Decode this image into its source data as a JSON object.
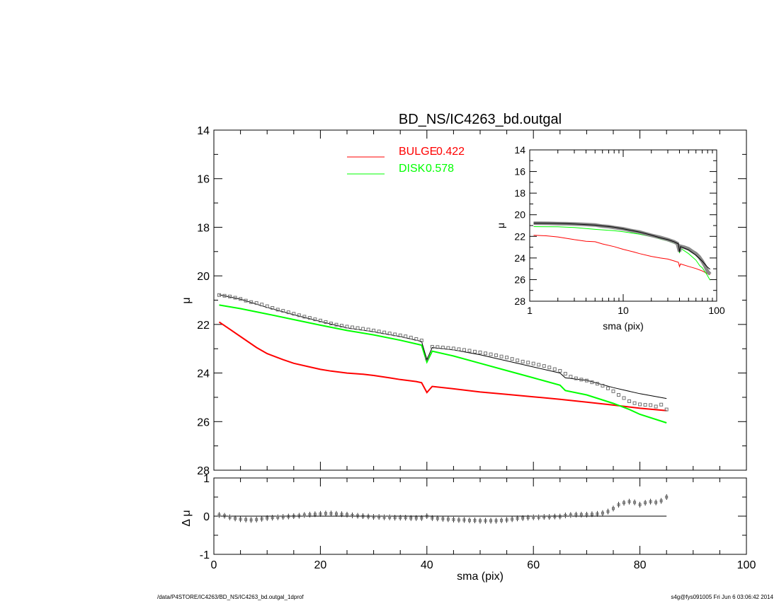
{
  "chart_data": [
    {
      "panel": "main",
      "type": "line",
      "title": "BD_NS/IC4263_bd.outgal",
      "xlabel": "",
      "ylabel": "μ",
      "xlim": [
        0,
        100
      ],
      "ylim": [
        28,
        14
      ],
      "y_inverted": true,
      "yticks": [
        "14",
        "16",
        "18",
        "20",
        "22",
        "24",
        "26",
        "28"
      ],
      "colors": {
        "data": "#000000",
        "total": "#000000",
        "bulge": "#ff0000",
        "disk": "#00ff00",
        "markers": "#707070"
      },
      "legend": {
        "placement": "top-center",
        "entries": [
          {
            "name": "BULGE",
            "value": "0.422",
            "color": "#ff0000"
          },
          {
            "name": "DISK",
            "value": "0.578",
            "color": "#00ff00"
          }
        ]
      },
      "series": [
        {
          "role": "data",
          "marker": "square",
          "x": [
            1,
            2,
            3,
            4,
            5,
            6,
            7,
            8,
            9,
            10,
            11,
            12,
            13,
            14,
            15,
            16,
            17,
            18,
            19,
            20,
            21,
            22,
            23,
            24,
            25,
            26,
            27,
            28,
            29,
            30,
            31,
            32,
            33,
            34,
            35,
            36,
            37,
            38,
            39,
            40,
            41,
            42,
            43,
            44,
            45,
            46,
            47,
            48,
            49,
            50,
            51,
            52,
            53,
            54,
            55,
            56,
            57,
            58,
            59,
            60,
            61,
            62,
            63,
            64,
            65,
            66,
            67,
            68,
            69,
            70,
            71,
            72,
            73,
            74,
            75,
            76,
            77,
            78,
            79,
            80,
            81,
            82,
            83,
            84,
            85
          ],
          "y": [
            20.79,
            20.82,
            20.85,
            20.9,
            20.95,
            21.02,
            21.08,
            21.12,
            21.18,
            21.25,
            21.32,
            21.39,
            21.44,
            21.5,
            21.56,
            21.62,
            21.68,
            21.73,
            21.79,
            21.84,
            21.9,
            21.96,
            22.01,
            22.05,
            22.09,
            22.12,
            22.15,
            22.18,
            22.21,
            22.25,
            22.29,
            22.33,
            22.37,
            22.41,
            22.45,
            22.49,
            22.54,
            22.6,
            22.66,
            23.4,
            22.92,
            22.93,
            22.95,
            22.97,
            22.99,
            23.02,
            23.05,
            23.08,
            23.12,
            23.15,
            23.19,
            23.23,
            23.27,
            23.32,
            23.36,
            23.42,
            23.48,
            23.53,
            23.57,
            23.61,
            23.66,
            23.71,
            23.77,
            23.84,
            23.91,
            24.03,
            24.15,
            24.22,
            24.27,
            24.31,
            24.38,
            24.44,
            24.52,
            24.63,
            24.75,
            24.9,
            25.03,
            25.16,
            25.24,
            25.29,
            25.31,
            25.32,
            25.38,
            25.3,
            25.5
          ]
        },
        {
          "role": "total",
          "x": [
            1,
            5,
            10,
            15,
            20,
            25,
            30,
            35,
            39,
            40,
            41,
            45,
            50,
            55,
            60,
            65,
            66,
            70,
            75,
            80,
            85
          ],
          "y": [
            20.78,
            20.96,
            21.3,
            21.6,
            21.88,
            22.14,
            22.3,
            22.5,
            22.7,
            23.45,
            22.95,
            23.05,
            23.25,
            23.5,
            23.75,
            24.0,
            24.2,
            24.3,
            24.6,
            24.85,
            25.05
          ]
        },
        {
          "role": "bulge",
          "name": "BULGE",
          "x": [
            1,
            3,
            5,
            8,
            10,
            13,
            15,
            18,
            20,
            22,
            25,
            28,
            30,
            33,
            35,
            38,
            39,
            40,
            41,
            45,
            50,
            55,
            60,
            65,
            70,
            75,
            80,
            85
          ],
          "y": [
            21.9,
            22.2,
            22.5,
            22.95,
            23.2,
            23.45,
            23.6,
            23.75,
            23.85,
            23.92,
            24.0,
            24.05,
            24.1,
            24.2,
            24.27,
            24.35,
            24.4,
            24.8,
            24.55,
            24.65,
            24.78,
            24.88,
            24.98,
            25.08,
            25.2,
            25.32,
            25.45,
            25.55
          ]
        },
        {
          "role": "disk",
          "name": "DISK",
          "x": [
            1,
            5,
            10,
            15,
            20,
            25,
            30,
            35,
            39,
            40,
            41,
            45,
            50,
            55,
            60,
            65,
            66,
            70,
            75,
            78,
            80,
            85
          ],
          "y": [
            21.2,
            21.35,
            21.57,
            21.8,
            22.03,
            22.25,
            22.43,
            22.65,
            22.85,
            23.55,
            23.1,
            23.3,
            23.6,
            23.9,
            24.2,
            24.5,
            24.72,
            24.9,
            25.25,
            25.5,
            25.7,
            26.05
          ]
        }
      ]
    },
    {
      "panel": "residual",
      "type": "scatter",
      "xlabel": "sma (pix)",
      "ylabel": "Δ μ",
      "xlim": [
        0,
        100
      ],
      "ylim": [
        -1,
        1
      ],
      "xticks": [
        "0",
        "20",
        "40",
        "60",
        "80",
        "100"
      ],
      "yticks": [
        "1",
        "0",
        "-1"
      ],
      "series": [
        {
          "role": "residual",
          "marker": "square",
          "x": [
            1,
            2,
            3,
            4,
            5,
            6,
            7,
            8,
            9,
            10,
            11,
            12,
            13,
            14,
            15,
            16,
            17,
            18,
            19,
            20,
            21,
            22,
            23,
            24,
            25,
            26,
            27,
            28,
            29,
            30,
            31,
            32,
            33,
            34,
            35,
            36,
            37,
            38,
            39,
            40,
            41,
            42,
            43,
            44,
            45,
            46,
            47,
            48,
            49,
            50,
            51,
            52,
            53,
            54,
            55,
            56,
            57,
            58,
            59,
            60,
            61,
            62,
            63,
            64,
            65,
            66,
            67,
            68,
            69,
            70,
            71,
            72,
            73,
            74,
            75,
            76,
            77,
            78,
            79,
            80,
            81,
            82,
            83,
            84,
            85
          ],
          "y": [
            0.03,
            0.01,
            -0.03,
            -0.06,
            -0.08,
            -0.09,
            -0.1,
            -0.09,
            -0.07,
            -0.05,
            -0.04,
            -0.03,
            -0.02,
            -0.01,
            0.0,
            0.01,
            0.03,
            0.04,
            0.05,
            0.06,
            0.07,
            0.07,
            0.06,
            0.05,
            0.04,
            0.02,
            0.01,
            0.0,
            -0.01,
            -0.02,
            -0.02,
            -0.03,
            -0.03,
            -0.04,
            -0.04,
            -0.04,
            -0.05,
            -0.05,
            -0.05,
            0.0,
            -0.05,
            -0.06,
            -0.07,
            -0.08,
            -0.09,
            -0.1,
            -0.1,
            -0.11,
            -0.11,
            -0.12,
            -0.12,
            -0.12,
            -0.12,
            -0.11,
            -0.1,
            -0.08,
            -0.06,
            -0.05,
            -0.04,
            -0.03,
            -0.03,
            -0.02,
            -0.02,
            -0.01,
            -0.01,
            0.02,
            0.03,
            0.04,
            0.04,
            0.04,
            0.05,
            0.06,
            0.08,
            0.12,
            0.2,
            0.3,
            0.35,
            0.38,
            0.36,
            0.3,
            0.35,
            0.38,
            0.36,
            0.4,
            0.5
          ]
        },
        {
          "role": "zero-line",
          "x": [
            1,
            85
          ],
          "y": [
            0,
            0
          ]
        }
      ]
    },
    {
      "panel": "inset",
      "type": "line",
      "xscale": "log",
      "xlabel": "sma (pix)",
      "ylabel": "μ",
      "xlim": [
        1,
        100
      ],
      "ylim": [
        28,
        14
      ],
      "y_inverted": true,
      "xticks": [
        "1",
        "10",
        "100"
      ],
      "yticks": [
        "14",
        "16",
        "18",
        "20",
        "22",
        "24",
        "26",
        "28"
      ],
      "series": [
        {
          "role": "data",
          "marker": "square",
          "x": [
            1.1,
            1.3,
            1.6,
            2,
            2.5,
            3,
            4,
            5,
            6,
            7,
            8,
            10,
            12,
            15,
            18,
            20,
            25,
            30,
            35,
            38,
            40,
            41,
            45,
            50,
            55,
            60,
            65,
            70,
            75,
            80,
            85
          ],
          "y": [
            20.79,
            20.79,
            20.8,
            20.82,
            20.83,
            20.85,
            20.9,
            20.95,
            21.05,
            21.1,
            21.18,
            21.3,
            21.45,
            21.6,
            21.8,
            21.9,
            22.1,
            22.3,
            22.5,
            22.66,
            23.4,
            22.92,
            23.0,
            23.15,
            23.4,
            23.6,
            23.9,
            24.3,
            24.75,
            25.25,
            25.5
          ]
        },
        {
          "role": "total",
          "x": [
            1.1,
            2,
            3,
            5,
            8,
            10,
            15,
            20,
            25,
            30,
            35,
            39,
            40,
            41,
            50,
            60,
            70,
            80,
            85
          ],
          "y": [
            20.78,
            20.8,
            20.85,
            20.96,
            21.15,
            21.3,
            21.6,
            21.88,
            22.14,
            22.3,
            22.5,
            22.7,
            23.45,
            22.95,
            23.25,
            23.75,
            24.3,
            24.85,
            25.05
          ]
        },
        {
          "role": "bulge",
          "x": [
            1.1,
            1.5,
            2,
            3,
            4,
            5,
            6,
            8,
            10,
            13,
            15,
            20,
            25,
            30,
            35,
            39,
            40,
            41,
            50,
            60,
            70,
            80,
            85
          ],
          "y": [
            21.9,
            21.95,
            22.05,
            22.3,
            22.45,
            22.5,
            22.7,
            22.95,
            23.2,
            23.45,
            23.6,
            23.85,
            24.0,
            24.1,
            24.27,
            24.4,
            24.8,
            24.55,
            24.78,
            24.98,
            25.2,
            25.45,
            25.55
          ]
        },
        {
          "role": "disk",
          "x": [
            1.1,
            2,
            3,
            5,
            8,
            10,
            15,
            20,
            25,
            30,
            35,
            39,
            40,
            41,
            50,
            60,
            66,
            70,
            78,
            85
          ],
          "y": [
            21.1,
            21.12,
            21.18,
            21.35,
            21.48,
            21.57,
            21.8,
            22.03,
            22.25,
            22.43,
            22.65,
            22.85,
            23.55,
            23.1,
            23.6,
            24.2,
            24.72,
            24.9,
            25.5,
            26.05
          ]
        }
      ]
    }
  ],
  "footer": {
    "left": "/data/P4STORE/IC4263/BD_NS/IC4263_bd.outgal_1dprof",
    "right": "s4g@fys091005  Fri Jun  6 03:06:42 2014"
  }
}
